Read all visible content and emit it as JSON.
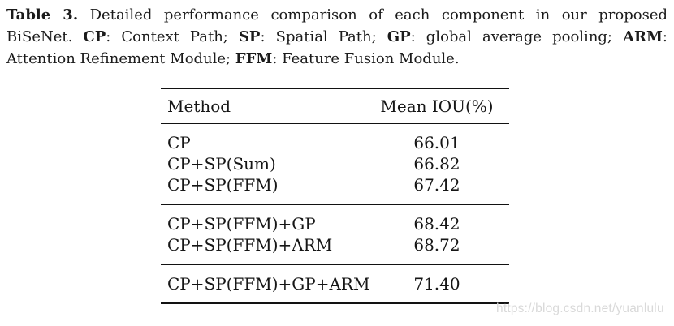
{
  "caption": {
    "lines": [
      [
        {
          "text": "Table 3.",
          "bold": true
        },
        {
          "text": " Detailed performance comparison of each component in our proposed",
          "bold": false
        }
      ],
      [
        {
          "text": "BiSeNet. ",
          "bold": false
        },
        {
          "text": "CP",
          "bold": true
        },
        {
          "text": ": Context Path; ",
          "bold": false
        },
        {
          "text": "SP",
          "bold": true
        },
        {
          "text": ": Spatial Path; ",
          "bold": false
        },
        {
          "text": "GP",
          "bold": true
        },
        {
          "text": ": global average pooling; ",
          "bold": false
        },
        {
          "text": "ARM",
          "bold": true
        },
        {
          "text": ":",
          "bold": false
        }
      ],
      [
        {
          "text": "Attention Refinement Module; ",
          "bold": false
        },
        {
          "text": "FFM",
          "bold": true
        },
        {
          "text": ": Feature Fusion Module.",
          "bold": false
        }
      ]
    ]
  },
  "table": {
    "columns": [
      "Method",
      "Mean IOU(%)"
    ],
    "groups": [
      {
        "rows": [
          {
            "method": "CP",
            "miou": "66.01"
          },
          {
            "method": "CP+SP(Sum)",
            "miou": "66.82"
          },
          {
            "method": "CP+SP(FFM)",
            "miou": "67.42"
          }
        ]
      },
      {
        "rows": [
          {
            "method": "CP+SP(FFM)+GP",
            "miou": "68.42"
          },
          {
            "method": "CP+SP(FFM)+ARM",
            "miou": "68.72"
          }
        ]
      },
      {
        "rows": [
          {
            "method": "CP+SP(FFM)+GP+ARM",
            "miou": "71.40"
          }
        ]
      }
    ]
  },
  "watermark": {
    "text": "https://blog.csdn.net/yuanlulu",
    "color": "#d9d9d9"
  },
  "colors": {
    "text": "#1b1b1b",
    "rule": "#121212",
    "background": "#ffffff"
  }
}
